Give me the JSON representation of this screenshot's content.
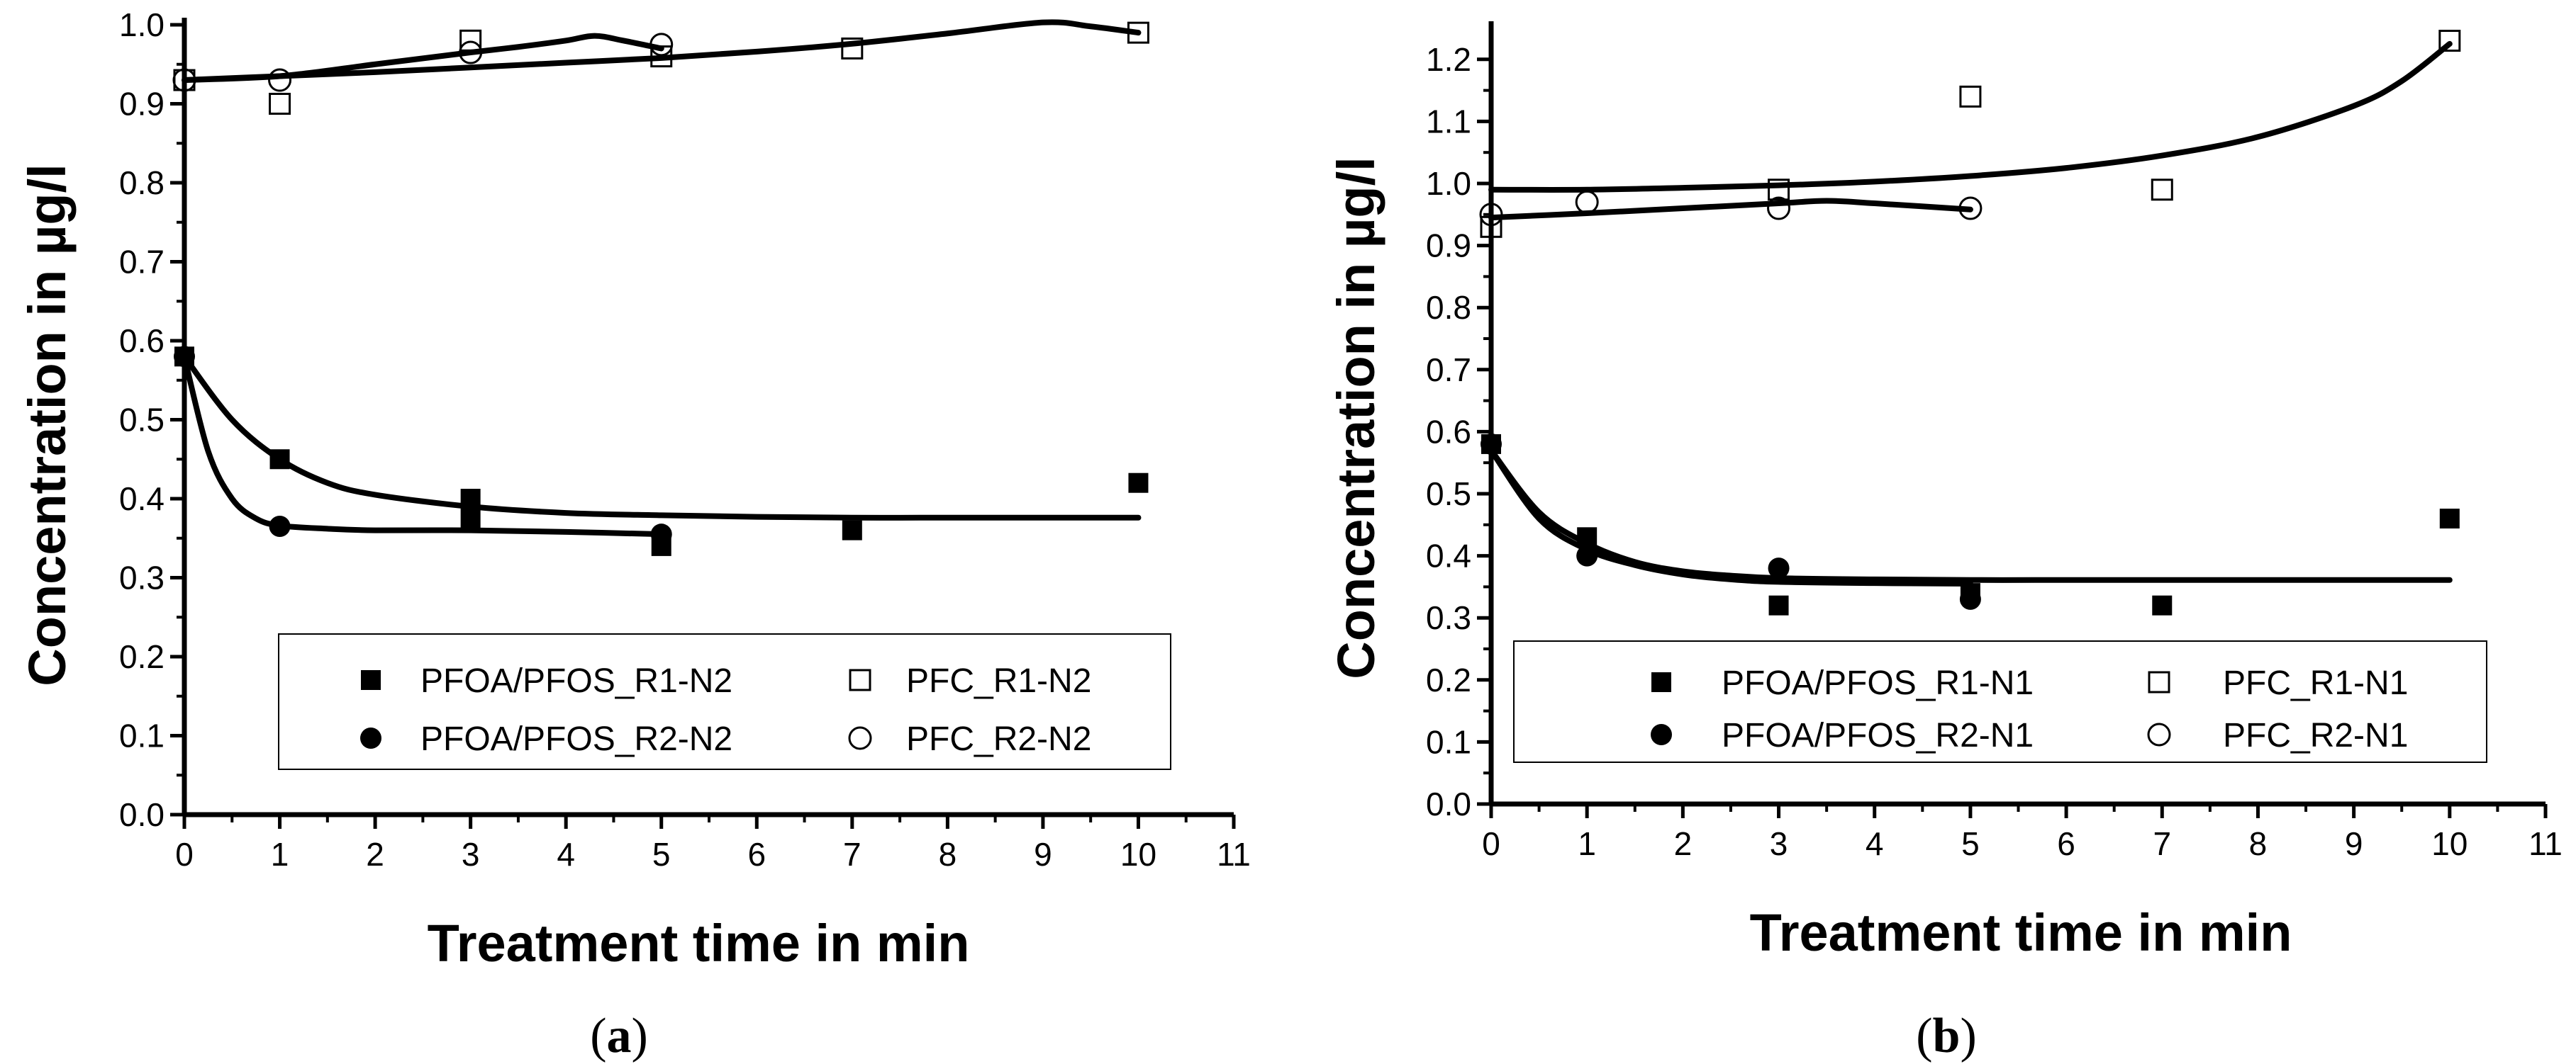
{
  "figure": {
    "panel_a_label": "a",
    "panel_b_label": "b"
  },
  "chart_data": [
    {
      "panel": "a",
      "type": "scatter",
      "title": "",
      "xlabel": "Treatment time in min",
      "ylabel": "Concentration in µg/l",
      "xlim": [
        0,
        11
      ],
      "ylim": [
        0,
        1.0
      ],
      "xticks": [
        0,
        1,
        2,
        3,
        4,
        5,
        6,
        7,
        8,
        9,
        10,
        11
      ],
      "yticks": [
        "0.0",
        "0.1",
        "0.2",
        "0.3",
        "0.4",
        "0.5",
        "0.6",
        "0.7",
        "0.8",
        "0.9",
        "1.0"
      ],
      "legend_position": "lower-right",
      "series": [
        {
          "name": "PFOA/PFOS_R1-N2",
          "marker": "filled-square",
          "x": [
            0,
            1,
            3,
            3,
            5,
            7,
            10
          ],
          "y": [
            0.58,
            0.45,
            0.4,
            0.375,
            0.34,
            0.36,
            0.42
          ]
        },
        {
          "name": "PFC_R1-N2",
          "marker": "open-square",
          "x": [
            0,
            1,
            3,
            5,
            7,
            10
          ],
          "y": [
            0.93,
            0.9,
            0.98,
            0.96,
            0.97,
            0.99
          ]
        },
        {
          "name": "PFOA/PFOS_R2-N2",
          "marker": "filled-circle",
          "x": [
            0,
            1,
            5
          ],
          "y": [
            0.58,
            0.365,
            0.355
          ]
        },
        {
          "name": "PFC_R2-N2",
          "marker": "open-circle",
          "x": [
            0,
            1,
            3,
            5
          ],
          "y": [
            0.93,
            0.93,
            0.965,
            0.975
          ]
        }
      ],
      "fit_curves": [
        {
          "x": [
            0,
            0.5,
            1,
            1.5,
            2,
            3,
            4,
            5,
            6,
            7,
            8,
            9,
            10
          ],
          "y": [
            0.58,
            0.5,
            0.45,
            0.42,
            0.405,
            0.39,
            0.382,
            0.379,
            0.377,
            0.376,
            0.376,
            0.376,
            0.376
          ]
        },
        {
          "x": [
            0,
            0.25,
            0.5,
            0.75,
            1,
            1.5,
            2,
            3,
            4,
            5
          ],
          "y": [
            0.58,
            0.46,
            0.4,
            0.375,
            0.366,
            0.362,
            0.36,
            0.36,
            0.358,
            0.355
          ]
        },
        {
          "x": [
            0,
            1,
            2,
            3,
            4,
            5,
            6,
            7,
            8,
            9,
            9.5,
            10
          ],
          "y": [
            0.93,
            0.935,
            0.94,
            0.946,
            0.952,
            0.958,
            0.966,
            0.976,
            0.989,
            1.003,
            0.998,
            0.99
          ]
        },
        {
          "x": [
            0,
            1,
            2,
            3,
            3.5,
            4,
            4.3,
            4.6,
            5
          ],
          "y": [
            0.93,
            0.935,
            0.95,
            0.965,
            0.972,
            0.98,
            0.986,
            0.98,
            0.97
          ]
        }
      ]
    },
    {
      "panel": "b",
      "type": "scatter",
      "title": "",
      "xlabel": "Treatment time in min",
      "ylabel": "Concentration in µg/l",
      "xlim": [
        0,
        11
      ],
      "ylim": [
        0,
        1.25
      ],
      "xticks": [
        0,
        1,
        2,
        3,
        4,
        5,
        6,
        7,
        8,
        9,
        10,
        11
      ],
      "yticks": [
        "0.0",
        "0.1",
        "0.2",
        "0.3",
        "0.4",
        "0.5",
        "0.6",
        "0.7",
        "0.8",
        "0.9",
        "1.0",
        "1.1",
        "1.2"
      ],
      "legend_position": "lower-right",
      "series": [
        {
          "name": "PFOA/PFOS_R1-N1",
          "marker": "filled-square",
          "x": [
            0,
            1,
            3,
            5,
            7,
            10
          ],
          "y": [
            0.58,
            0.43,
            0.32,
            0.34,
            0.32,
            0.46
          ]
        },
        {
          "name": "PFC_R1-N1",
          "marker": "open-square",
          "x": [
            0,
            3,
            5,
            7,
            10
          ],
          "y": [
            0.93,
            0.99,
            1.14,
            0.99,
            1.23
          ]
        },
        {
          "name": "PFOA/PFOS_R2-N1",
          "marker": "filled-circle",
          "x": [
            0,
            1,
            3,
            5
          ],
          "y": [
            0.58,
            0.4,
            0.38,
            0.33
          ]
        },
        {
          "name": "PFC_R2-N1",
          "marker": "open-circle",
          "x": [
            0,
            1,
            3,
            5
          ],
          "y": [
            0.95,
            0.97,
            0.96,
            0.96
          ]
        }
      ],
      "fit_curves": [
        {
          "x": [
            0,
            0.5,
            1,
            1.5,
            2,
            2.5,
            3,
            4,
            5,
            6,
            7,
            8,
            9,
            10
          ],
          "y": [
            0.57,
            0.47,
            0.42,
            0.39,
            0.375,
            0.368,
            0.364,
            0.362,
            0.361,
            0.361,
            0.361,
            0.361,
            0.361,
            0.361
          ]
        },
        {
          "x": [
            0,
            0.5,
            1,
            1.5,
            2,
            2.5,
            3,
            4,
            5
          ],
          "y": [
            0.57,
            0.46,
            0.41,
            0.385,
            0.37,
            0.362,
            0.358,
            0.356,
            0.355
          ]
        },
        {
          "x": [
            0,
            1,
            2,
            3,
            4,
            5,
            6,
            7,
            8,
            9,
            9.5,
            10
          ],
          "y": [
            0.99,
            0.99,
            0.993,
            0.997,
            1.003,
            1.012,
            1.025,
            1.045,
            1.075,
            1.125,
            1.165,
            1.225
          ]
        },
        {
          "x": [
            0,
            1,
            2,
            3,
            3.5,
            4,
            5
          ],
          "y": [
            0.945,
            0.952,
            0.96,
            0.968,
            0.972,
            0.968,
            0.958
          ]
        }
      ]
    }
  ]
}
